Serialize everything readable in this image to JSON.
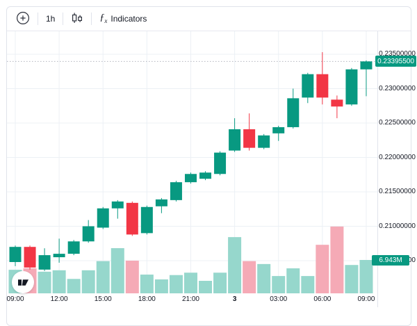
{
  "toolbar": {
    "interval": "1h",
    "fx_glyph": "ƒ",
    "fx_sub": "x",
    "indicators_label": "Indicators"
  },
  "price_axis": {
    "labels": [
      {
        "text": "0.23500000",
        "price": 0.235
      },
      {
        "text": "0.23000000",
        "price": 0.23
      },
      {
        "text": "0.22500000",
        "price": 0.225
      },
      {
        "text": "0.22000000",
        "price": 0.22
      },
      {
        "text": "0.21500000",
        "price": 0.215
      },
      {
        "text": "0.21000000",
        "price": 0.21
      },
      {
        "text": "0.20500000",
        "price": 0.205
      }
    ],
    "current_price": "0.23395500",
    "current_price_value": 0.233955,
    "current_volume": "6.943M",
    "current_volume_millions": 6.943
  },
  "time_axis": {
    "labels": [
      {
        "text": "09:00",
        "candle_index": 0,
        "bold": false
      },
      {
        "text": "12:00",
        "candle_index": 3,
        "bold": false
      },
      {
        "text": "15:00",
        "candle_index": 6,
        "bold": false
      },
      {
        "text": "18:00",
        "candle_index": 9,
        "bold": false
      },
      {
        "text": "21:00",
        "candle_index": 12,
        "bold": false
      },
      {
        "text": "3",
        "candle_index": 15,
        "bold": true
      },
      {
        "text": "03:00",
        "candle_index": 18,
        "bold": false
      },
      {
        "text": "06:00",
        "candle_index": 21,
        "bold": false
      },
      {
        "text": "09:00",
        "candle_index": 24,
        "bold": false
      }
    ]
  },
  "colors": {
    "up": "#089981",
    "down": "#f23645",
    "vol_up": "#96d7cc",
    "vol_down": "#f5aab6",
    "badge_bg": "#089981",
    "grid": "#ecf0f5",
    "axis_border": "#e0e3eb",
    "price_line": "#b2b5be",
    "text": "#131722"
  },
  "chart_data": {
    "type": "candlestick",
    "interval": "1h",
    "title": "",
    "y_axis": {
      "min": 0.2035,
      "max": 0.2355,
      "tick_step": 0.005
    },
    "volume_axis": {
      "last_value_label": "6.943M",
      "last_value_millions": 6.943
    },
    "candles": [
      {
        "t": "09:00",
        "o": 0.2048,
        "h": 0.2072,
        "l": 0.2042,
        "c": 0.207,
        "v": 4.9
      },
      {
        "t": "10:00",
        "o": 0.207,
        "h": 0.2072,
        "l": 0.2037,
        "c": 0.204,
        "v": 5.2
      },
      {
        "t": "11:00",
        "o": 0.2037,
        "h": 0.2068,
        "l": 0.2035,
        "c": 0.2058,
        "v": 4.5
      },
      {
        "t": "12:00",
        "o": 0.2055,
        "h": 0.2082,
        "l": 0.2047,
        "c": 0.206,
        "v": 4.8
      },
      {
        "t": "13:00",
        "o": 0.206,
        "h": 0.208,
        "l": 0.2058,
        "c": 0.2078,
        "v": 3.0
      },
      {
        "t": "14:00",
        "o": 0.2078,
        "h": 0.2109,
        "l": 0.2076,
        "c": 0.21,
        "v": 4.8
      },
      {
        "t": "15:00",
        "o": 0.2098,
        "h": 0.2128,
        "l": 0.2096,
        "c": 0.2126,
        "v": 6.7
      },
      {
        "t": "16:00",
        "o": 0.2126,
        "h": 0.2138,
        "l": 0.2111,
        "c": 0.2136,
        "v": 9.4
      },
      {
        "t": "17:00",
        "o": 0.2134,
        "h": 0.2136,
        "l": 0.2086,
        "c": 0.2088,
        "v": 6.8
      },
      {
        "t": "18:00",
        "o": 0.209,
        "h": 0.213,
        "l": 0.2088,
        "c": 0.2128,
        "v": 3.9
      },
      {
        "t": "19:00",
        "o": 0.2129,
        "h": 0.2141,
        "l": 0.2119,
        "c": 0.2139,
        "v": 2.9
      },
      {
        "t": "20:00",
        "o": 0.2138,
        "h": 0.2166,
        "l": 0.2136,
        "c": 0.2164,
        "v": 3.8
      },
      {
        "t": "21:00",
        "o": 0.2164,
        "h": 0.2178,
        "l": 0.2162,
        "c": 0.2176,
        "v": 4.3
      },
      {
        "t": "22:00",
        "o": 0.2169,
        "h": 0.218,
        "l": 0.2167,
        "c": 0.2178,
        "v": 2.6
      },
      {
        "t": "23:00",
        "o": 0.2176,
        "h": 0.2209,
        "l": 0.2174,
        "c": 0.2207,
        "v": 4.3
      },
      {
        "t": "00:00",
        "o": 0.221,
        "h": 0.2257,
        "l": 0.2208,
        "c": 0.2241,
        "v": 11.7
      },
      {
        "t": "01:00",
        "o": 0.2241,
        "h": 0.2264,
        "l": 0.221,
        "c": 0.2214,
        "v": 6.7
      },
      {
        "t": "02:00",
        "o": 0.2214,
        "h": 0.2234,
        "l": 0.2212,
        "c": 0.2232,
        "v": 6.1
      },
      {
        "t": "03:00",
        "o": 0.2235,
        "h": 0.2246,
        "l": 0.2224,
        "c": 0.2244,
        "v": 3.6
      },
      {
        "t": "04:00",
        "o": 0.2244,
        "h": 0.23,
        "l": 0.2242,
        "c": 0.2286,
        "v": 5.2
      },
      {
        "t": "05:00",
        "o": 0.2287,
        "h": 0.2323,
        "l": 0.2279,
        "c": 0.2321,
        "v": 3.6
      },
      {
        "t": "06:00",
        "o": 0.2321,
        "h": 0.2353,
        "l": 0.2277,
        "c": 0.2287,
        "v": 10.1
      },
      {
        "t": "07:00",
        "o": 0.2284,
        "h": 0.229,
        "l": 0.2257,
        "c": 0.2274,
        "v": 13.9
      },
      {
        "t": "08:00",
        "o": 0.2277,
        "h": 0.233,
        "l": 0.2275,
        "c": 0.2328,
        "v": 5.9
      },
      {
        "t": "09:00",
        "o": 0.2328,
        "h": 0.2341,
        "l": 0.2289,
        "c": 0.233955,
        "v": 6.943
      }
    ]
  }
}
